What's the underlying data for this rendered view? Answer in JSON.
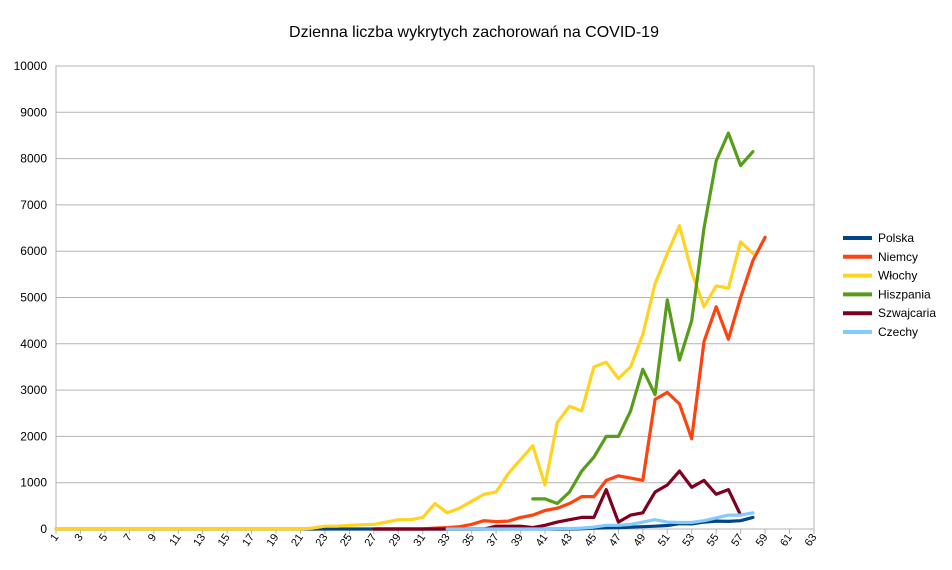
{
  "chart_data": {
    "type": "line",
    "title": "Dzienna liczba wykrytych zachorowań na COVID-19",
    "xlabel": "",
    "ylabel": "",
    "xlim": [
      1,
      63
    ],
    "ylim": [
      0,
      10000
    ],
    "yticks": [
      "0",
      "1000",
      "2000",
      "3000",
      "4000",
      "5000",
      "6000",
      "7000",
      "8000",
      "9000",
      "10000"
    ],
    "xticks": [
      "1",
      "3",
      "5",
      "7",
      "9",
      "11",
      "13",
      "15",
      "17",
      "19",
      "21",
      "23",
      "25",
      "27",
      "29",
      "31",
      "33",
      "35",
      "37",
      "39",
      "41",
      "43",
      "45",
      "47",
      "49",
      "51",
      "53",
      "55",
      "57",
      "59",
      "61",
      "63"
    ],
    "grid": "horizontal",
    "legend_position": "right",
    "series": [
      {
        "name": "Polska",
        "color": "#004586",
        "points": [
          [
            1,
            0
          ],
          [
            2,
            0
          ],
          [
            3,
            0
          ],
          [
            4,
            0
          ],
          [
            5,
            0
          ],
          [
            6,
            0
          ],
          [
            7,
            0
          ],
          [
            8,
            0
          ],
          [
            9,
            0
          ],
          [
            10,
            0
          ],
          [
            11,
            0
          ],
          [
            12,
            0
          ],
          [
            13,
            0
          ],
          [
            14,
            0
          ],
          [
            15,
            0
          ],
          [
            16,
            0
          ],
          [
            17,
            0
          ],
          [
            18,
            0
          ],
          [
            19,
            0
          ],
          [
            20,
            0
          ],
          [
            21,
            0
          ],
          [
            22,
            0
          ],
          [
            23,
            0
          ],
          [
            24,
            0
          ],
          [
            25,
            0
          ],
          [
            26,
            0
          ],
          [
            27,
            0
          ],
          [
            28,
            0
          ],
          [
            29,
            0
          ],
          [
            30,
            0
          ],
          [
            31,
            0
          ],
          [
            32,
            0
          ],
          [
            33,
            0
          ],
          [
            34,
            0
          ],
          [
            35,
            0
          ],
          [
            36,
            0
          ],
          [
            37,
            0
          ],
          [
            38,
            0
          ],
          [
            39,
            0
          ],
          [
            40,
            0
          ],
          [
            41,
            0
          ],
          [
            42,
            0
          ],
          [
            43,
            0
          ],
          [
            44,
            5
          ],
          [
            45,
            20
          ],
          [
            46,
            25
          ],
          [
            47,
            30
          ],
          [
            48,
            40
          ],
          [
            49,
            50
          ],
          [
            50,
            60
          ],
          [
            51,
            75
          ],
          [
            52,
            115
          ],
          [
            53,
            110
          ],
          [
            54,
            150
          ],
          [
            55,
            170
          ],
          [
            56,
            165
          ],
          [
            57,
            180
          ],
          [
            58,
            250
          ]
        ]
      },
      {
        "name": "Niemcy",
        "color": "#FF420E",
        "points": [
          [
            27,
            0
          ],
          [
            28,
            0
          ],
          [
            29,
            0
          ],
          [
            30,
            0
          ],
          [
            31,
            0
          ],
          [
            32,
            20
          ],
          [
            33,
            30
          ],
          [
            34,
            50
          ],
          [
            35,
            100
          ],
          [
            36,
            180
          ],
          [
            37,
            160
          ],
          [
            38,
            170
          ],
          [
            39,
            250
          ],
          [
            40,
            300
          ],
          [
            41,
            400
          ],
          [
            42,
            450
          ],
          [
            43,
            550
          ],
          [
            44,
            700
          ],
          [
            45,
            700
          ],
          [
            46,
            1050
          ],
          [
            47,
            1150
          ],
          [
            48,
            1100
          ],
          [
            49,
            1050
          ],
          [
            50,
            2800
          ],
          [
            51,
            2950
          ],
          [
            52,
            2700
          ],
          [
            53,
            1950
          ],
          [
            54,
            4050
          ],
          [
            55,
            4800
          ],
          [
            56,
            4100
          ],
          [
            57,
            5000
          ],
          [
            58,
            5800
          ],
          [
            59,
            6300
          ]
        ]
      },
      {
        "name": "Włochy",
        "color": "#FFD320",
        "points": [
          [
            1,
            0
          ],
          [
            2,
            0
          ],
          [
            3,
            0
          ],
          [
            4,
            0
          ],
          [
            5,
            0
          ],
          [
            6,
            0
          ],
          [
            7,
            0
          ],
          [
            8,
            0
          ],
          [
            9,
            0
          ],
          [
            10,
            0
          ],
          [
            11,
            0
          ],
          [
            12,
            0
          ],
          [
            13,
            0
          ],
          [
            14,
            0
          ],
          [
            15,
            0
          ],
          [
            16,
            0
          ],
          [
            17,
            0
          ],
          [
            18,
            0
          ],
          [
            19,
            0
          ],
          [
            20,
            0
          ],
          [
            21,
            0
          ],
          [
            22,
            20
          ],
          [
            23,
            60
          ],
          [
            24,
            60
          ],
          [
            25,
            80
          ],
          [
            26,
            90
          ],
          [
            27,
            100
          ],
          [
            28,
            150
          ],
          [
            29,
            200
          ],
          [
            30,
            200
          ],
          [
            31,
            250
          ],
          [
            32,
            550
          ],
          [
            33,
            350
          ],
          [
            34,
            450
          ],
          [
            35,
            600
          ],
          [
            36,
            750
          ],
          [
            37,
            800
          ],
          [
            38,
            1200
          ],
          [
            39,
            1500
          ],
          [
            40,
            1800
          ],
          [
            41,
            950
          ],
          [
            42,
            2300
          ],
          [
            43,
            2650
          ],
          [
            44,
            2550
          ],
          [
            45,
            3500
          ],
          [
            46,
            3600
          ],
          [
            47,
            3250
          ],
          [
            48,
            3500
          ],
          [
            49,
            4200
          ],
          [
            50,
            5300
          ],
          [
            51,
            5950
          ],
          [
            52,
            6550
          ],
          [
            53,
            5550
          ],
          [
            54,
            4800
          ],
          [
            55,
            5250
          ],
          [
            56,
            5200
          ],
          [
            57,
            6200
          ],
          [
            58,
            5950
          ]
        ]
      },
      {
        "name": "Hiszpania",
        "color": "#579D1C",
        "points": [
          [
            40,
            650
          ],
          [
            41,
            650
          ],
          [
            42,
            550
          ],
          [
            43,
            800
          ],
          [
            44,
            1250
          ],
          [
            45,
            1550
          ],
          [
            46,
            2000
          ],
          [
            47,
            2000
          ],
          [
            48,
            2550
          ],
          [
            49,
            3450
          ],
          [
            50,
            2900
          ],
          [
            51,
            4950
          ],
          [
            52,
            3650
          ],
          [
            53,
            4500
          ],
          [
            54,
            6500
          ],
          [
            55,
            7950
          ],
          [
            56,
            8550
          ],
          [
            57,
            7850
          ],
          [
            58,
            8150
          ]
        ]
      },
      {
        "name": "Szwajcaria",
        "color": "#7E0021",
        "points": [
          [
            27,
            0
          ],
          [
            28,
            0
          ],
          [
            29,
            0
          ],
          [
            30,
            0
          ],
          [
            31,
            0
          ],
          [
            32,
            0
          ],
          [
            33,
            0
          ],
          [
            34,
            0
          ],
          [
            35,
            0
          ],
          [
            36,
            0
          ],
          [
            37,
            60
          ],
          [
            38,
            60
          ],
          [
            39,
            60
          ],
          [
            40,
            30
          ],
          [
            41,
            80
          ],
          [
            42,
            150
          ],
          [
            43,
            200
          ],
          [
            44,
            250
          ],
          [
            45,
            250
          ],
          [
            46,
            850
          ],
          [
            47,
            150
          ],
          [
            48,
            300
          ],
          [
            49,
            350
          ],
          [
            50,
            800
          ],
          [
            51,
            950
          ],
          [
            52,
            1250
          ],
          [
            53,
            900
          ],
          [
            54,
            1050
          ],
          [
            55,
            750
          ],
          [
            56,
            850
          ],
          [
            57,
            300
          ]
        ]
      },
      {
        "name": "Czechy",
        "color": "#83CAFF",
        "points": [
          [
            33,
            0
          ],
          [
            34,
            0
          ],
          [
            35,
            0
          ],
          [
            36,
            0
          ],
          [
            37,
            0
          ],
          [
            38,
            0
          ],
          [
            39,
            0
          ],
          [
            40,
            0
          ],
          [
            41,
            0
          ],
          [
            42,
            10
          ],
          [
            43,
            10
          ],
          [
            44,
            20
          ],
          [
            45,
            40
          ],
          [
            46,
            80
          ],
          [
            47,
            80
          ],
          [
            48,
            100
          ],
          [
            49,
            150
          ],
          [
            50,
            200
          ],
          [
            51,
            150
          ],
          [
            52,
            140
          ],
          [
            53,
            140
          ],
          [
            54,
            180
          ],
          [
            55,
            240
          ],
          [
            56,
            300
          ],
          [
            57,
            300
          ],
          [
            58,
            350
          ]
        ]
      }
    ]
  }
}
